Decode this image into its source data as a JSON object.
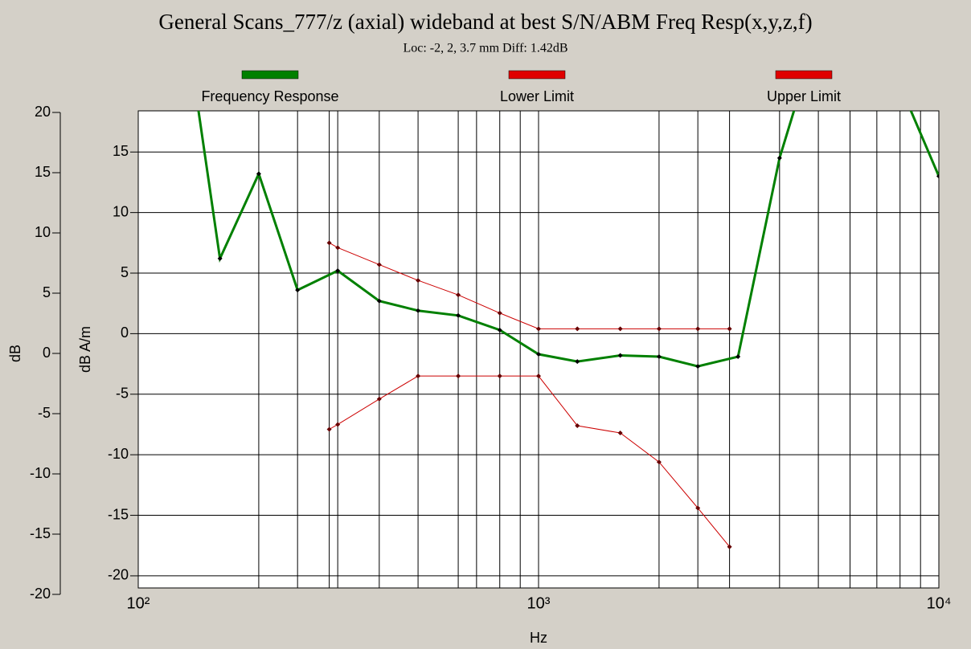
{
  "chart_data": {
    "type": "line",
    "title": "General Scans_777/z (axial) wideband at best S/N/ABM Freq Resp(x,y,z,f)",
    "subtitle": "Loc: -2, 2, 3.7 mm Diff: 1.42dB",
    "xlabel": "Hz",
    "ylabel": "dB A/m",
    "y2label": "dB",
    "xscale": "log",
    "xlim": [
      100,
      10000
    ],
    "xticks": [
      {
        "value": 100,
        "label": "10²"
      },
      {
        "value": 1000,
        "label": "10³"
      },
      {
        "value": 10000,
        "label": "10⁴"
      }
    ],
    "xminor": [
      200,
      250,
      300,
      315,
      400,
      500,
      630,
      700,
      800,
      900,
      2000,
      2500,
      3000,
      4000,
      5000,
      6000,
      7000,
      8000,
      9000
    ],
    "ylim": [
      -21,
      18.4
    ],
    "yticks": [
      -20,
      -15,
      -10,
      -5,
      0,
      5,
      10,
      15
    ],
    "y2lim": [
      -20,
      20
    ],
    "y2ticks": [
      -20,
      -15,
      -10,
      -5,
      0,
      5,
      10,
      15,
      20
    ],
    "grid": true,
    "legend": "top",
    "series": [
      {
        "name": "Frequency Response",
        "color": "#008000",
        "x": [
          125,
          160,
          200,
          250,
          315,
          400,
          500,
          630,
          800,
          1000,
          1250,
          1600,
          2000,
          2500,
          3150,
          4000,
          5000,
          6300,
          8000,
          10000
        ],
        "values": [
          30.6,
          6.2,
          13.2,
          3.6,
          5.2,
          2.7,
          1.9,
          1.5,
          0.3,
          -1.7,
          -2.3,
          -1.8,
          -1.9,
          -2.7,
          -1.9,
          14.5,
          25,
          25,
          20.5,
          13
        ]
      },
      {
        "name": "Lower Limit",
        "color": "#cc0000",
        "x": [
          300,
          315,
          400,
          500,
          630,
          800,
          1000,
          1250,
          1600,
          2000,
          2500,
          3000
        ],
        "values": [
          -7.9,
          -7.5,
          -5.4,
          -3.5,
          -3.5,
          -3.5,
          -3.5,
          -7.6,
          -8.2,
          -10.6,
          -14.4,
          -17.6
        ]
      },
      {
        "name": "Upper Limit",
        "color": "#cc0000",
        "x": [
          300,
          315,
          400,
          500,
          630,
          800,
          1000,
          1250,
          1600,
          2000,
          2500,
          3000
        ],
        "values": [
          7.5,
          7.1,
          5.7,
          4.4,
          3.2,
          1.7,
          0.4,
          0.4,
          0.4,
          0.4,
          0.4,
          0.4
        ]
      }
    ]
  }
}
